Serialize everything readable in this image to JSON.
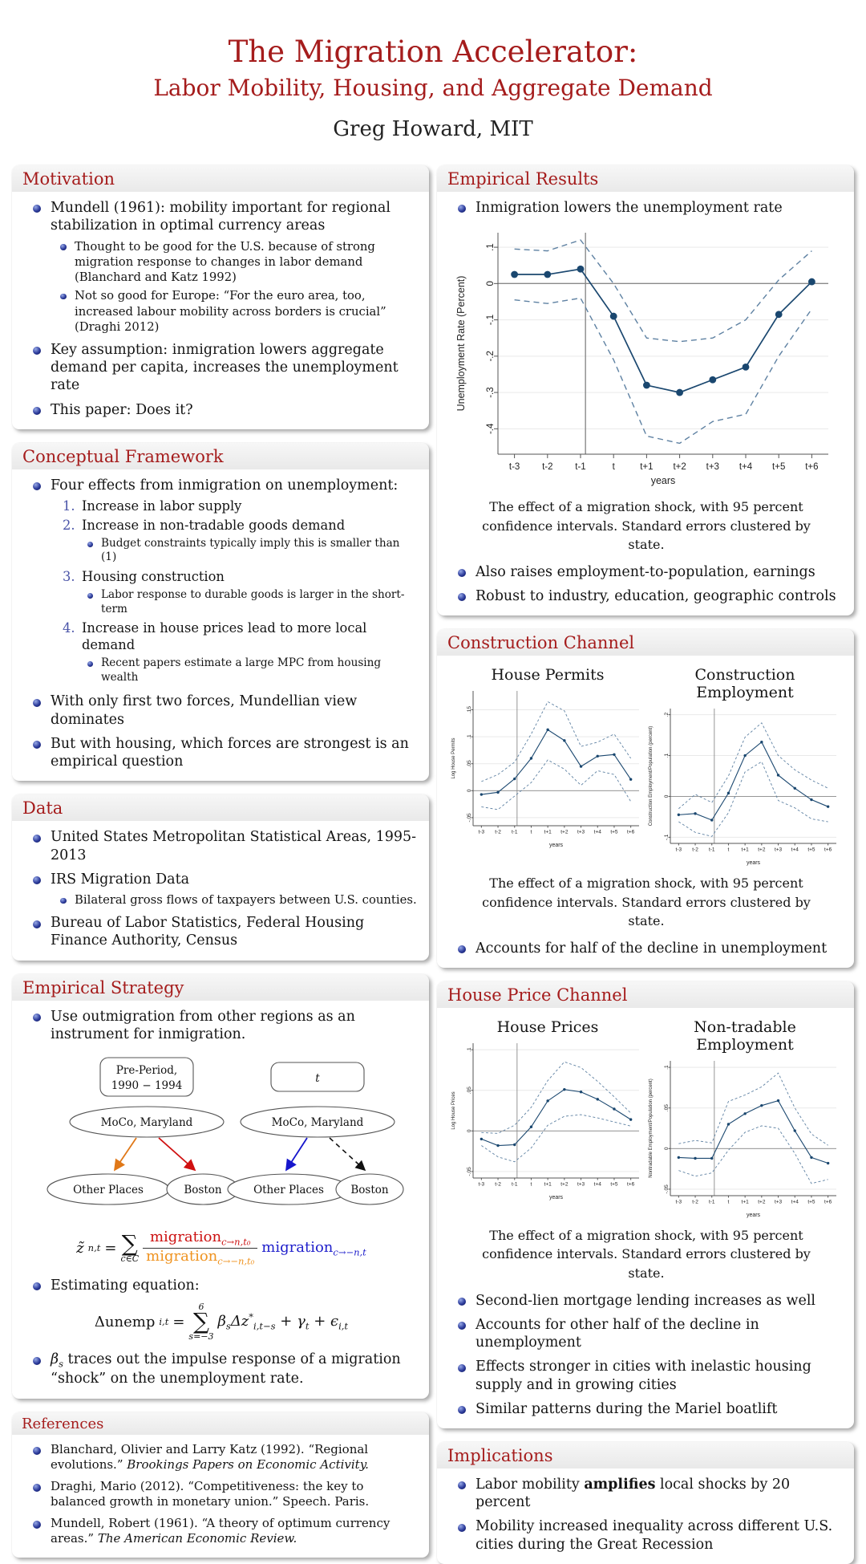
{
  "header": {
    "title_line1": "The Migration Accelerator:",
    "title_line2": "Labor Mobility, Housing, and Aggregate Demand",
    "author": "Greg Howard, MIT"
  },
  "captions": {
    "shock": "The effect of a migration shock, with 95 percent confidence intervals. Standard errors clustered by state."
  },
  "left": {
    "motivation": {
      "title": "Motivation",
      "b1": "Mundell (1961): mobility important for regional stabilization in optimal currency areas",
      "b1_sub": [
        "Thought to be good for the U.S. because of strong migration response to changes in labor demand (Blanchard and Katz 1992)",
        "Not so good for Europe: “For the euro area, too, increased labour mobility across borders is crucial” (Draghi 2012)"
      ],
      "b2": "Key assumption: inmigration lowers aggregate demand per capita, increases the unemployment rate",
      "b3": "This paper: Does it?"
    },
    "framework": {
      "title": "Conceptual Framework",
      "b1": "Four effects from inmigration on unemployment:",
      "n1": "Increase in labor supply",
      "n2": "Increase in non-tradable goods demand",
      "n2_sub": "Budget constraints typically imply this is smaller than (1)",
      "n3": "Housing construction",
      "n3_sub": "Labor response to durable goods is larger in the short-term",
      "n4": "Increase in house prices lead to more local demand",
      "n4_sub": "Recent papers estimate a large MPC from housing wealth",
      "b2": "With only first two forces, Mundellian view dominates",
      "b3": "But with housing, which forces are strongest is an empirical question"
    },
    "data": {
      "title": "Data",
      "b1": "United States Metropolitan Statistical Areas, 1995-2013",
      "b2": "IRS Migration Data",
      "b2_sub": "Bilateral gross flows of taxpayers between U.S. counties.",
      "b3": "Bureau of Labor Statistics, Federal Housing Finance Authority, Census"
    },
    "strategy": {
      "title": "Empirical Strategy",
      "b1": "Use outmigration from other regions as an instrument for inmigration.",
      "diagram": {
        "box1_line1": "Pre-Period,",
        "box1_line2": "1990 − 1994",
        "box2": "t",
        "moco": "MoCo, Maryland",
        "other": "Other Places",
        "boston": "Boston"
      },
      "eq1": {
        "lhs": "z̃",
        "lhs_sub": "n,t",
        "equals": "=",
        "sum": "∑",
        "sum_bottom": "c∈C",
        "num": "migration",
        "num_sub": "c→n,t₀",
        "den": "migration",
        "den_sub": "c→−n,t₀",
        "tail": "migration",
        "tail_sub": "c→−n,t"
      },
      "b2": "Estimating equation:",
      "eq2": {
        "lhs": "Δunemp",
        "lhs_sub": "i,t",
        "equals": "=",
        "sum": "∑",
        "sum_top": "6",
        "sum_bottom": "s=−3",
        "beta": "β",
        "beta_sub": "s",
        "dz": "Δz",
        "dz_sup": "*",
        "dz_sub": "i,t−s",
        "gamma": "+ γ",
        "gamma_sub": "t",
        "eps": "+ ϵ",
        "eps_sub": "i,t"
      },
      "b3a": "β",
      "b3a_sub": "s",
      "b3b": " traces out the impulse response of a migration “shock” on the unemployment rate."
    },
    "references": {
      "title": "References",
      "r1": "Blanchard, Olivier and Larry Katz (1992). “Regional evolutions.” ",
      "r1_it": "Brookings Papers on Economic Activity.",
      "r2": "Draghi, Mario (2012). “Competitiveness: the key to balanced growth in monetary union.” Speech. Paris.",
      "r3": "Mundell, Robert (1961). “A theory of optimum currency areas.” ",
      "r3_it": "The American Economic Review."
    }
  },
  "right": {
    "results": {
      "title": "Empirical Results",
      "b1": "Inmigration lowers the unemployment rate",
      "b2": "Also raises employment-to-population, earnings",
      "b3": "Robust to industry, education, geographic controls"
    },
    "construction": {
      "title": "Construction Channel",
      "b1": "Accounts for half of the decline in unemployment"
    },
    "houseprice": {
      "title": "House Price Channel",
      "b1": "Second-lien mortgage lending increases as well",
      "b2": "Accounts for other half of the decline in unemployment",
      "b3": "Effects stronger in cities with inelastic housing supply and in growing cities",
      "b4": "Similar patterns during the Mariel boatlift"
    },
    "implications": {
      "title": "Implications",
      "b1_pre": "Labor mobility ",
      "b1_bold": "amplifies",
      "b1_post": " local shocks by 20 percent",
      "b2": "Mobility increased inequality across different U.S. cities during the Great Recession"
    }
  },
  "chart_data": [
    {
      "type": "line",
      "title": "",
      "xlabel": "years",
      "ylabel": "Unemployment Rate (Percent)",
      "categories": [
        "t-3",
        "t-2",
        "t-1",
        "t",
        "t+1",
        "t+2",
        "t+3",
        "t+4",
        "t+5",
        "t+6"
      ],
      "yticks": [
        0.1,
        0,
        -0.1,
        -0.2,
        -0.3,
        -0.4
      ],
      "ylim": [
        -0.47,
        0.14
      ],
      "ref_x_index": 2.15,
      "grid": true,
      "legend": "none",
      "small": false,
      "series": [
        {
          "name": "estimate",
          "values": [
            0.025,
            0.025,
            0.04,
            -0.09,
            -0.28,
            -0.3,
            -0.265,
            -0.23,
            -0.085,
            0.005
          ]
        },
        {
          "name": "upper 95% CI",
          "values": [
            0.095,
            0.09,
            0.12,
            0.0,
            -0.15,
            -0.16,
            -0.15,
            -0.1,
            0.01,
            0.09
          ]
        },
        {
          "name": "lower 95% CI",
          "values": [
            -0.045,
            -0.055,
            -0.04,
            -0.21,
            -0.42,
            -0.44,
            -0.38,
            -0.36,
            -0.2,
            -0.07
          ]
        }
      ]
    },
    {
      "type": "line",
      "title": "House Permits",
      "xlabel": "years",
      "ylabel": "Log House Permits",
      "categories": [
        "t-3",
        "t-2",
        "t-1",
        "t",
        "t+1",
        "t+2",
        "t+3",
        "t+4",
        "t+5",
        "t+6"
      ],
      "yticks": [
        0.15,
        0.1,
        0.05,
        0,
        -0.05
      ],
      "ylim": [
        -0.065,
        0.185
      ],
      "ref_x_index": 2.15,
      "grid": true,
      "legend": "none",
      "small": true,
      "series": [
        {
          "name": "estimate",
          "values": [
            -0.007,
            -0.003,
            0.022,
            0.06,
            0.113,
            0.093,
            0.045,
            0.064,
            0.067,
            0.021
          ]
        },
        {
          "name": "upper 95% CI",
          "values": [
            0.017,
            0.03,
            0.053,
            0.105,
            0.165,
            0.148,
            0.082,
            0.09,
            0.105,
            0.06
          ]
        },
        {
          "name": "lower 95% CI",
          "values": [
            -0.03,
            -0.035,
            -0.01,
            0.015,
            0.057,
            0.04,
            0.01,
            0.037,
            0.03,
            -0.02
          ]
        }
      ]
    },
    {
      "type": "line",
      "title": "Construction Employment",
      "xlabel": "years",
      "ylabel": "Construction Employment/Population (percent)",
      "categories": [
        "t-3",
        "t-2",
        "t-1",
        "t",
        "t+1",
        "t+2",
        "t+3",
        "t+4",
        "t+5",
        "t+6"
      ],
      "yticks": [
        0.2,
        0.1,
        0,
        -0.1
      ],
      "ylim": [
        -0.115,
        0.215
      ],
      "ref_x_index": 2.15,
      "grid": true,
      "legend": "none",
      "small": true,
      "series": [
        {
          "name": "estimate",
          "values": [
            -0.045,
            -0.042,
            -0.058,
            0.008,
            0.1,
            0.133,
            0.052,
            0.02,
            -0.008,
            -0.025
          ]
        },
        {
          "name": "upper 95% CI",
          "values": [
            -0.03,
            0.005,
            -0.015,
            0.05,
            0.145,
            0.18,
            0.1,
            0.065,
            0.04,
            0.02
          ]
        },
        {
          "name": "lower 95% CI",
          "values": [
            -0.062,
            -0.088,
            -0.098,
            -0.04,
            0.06,
            0.085,
            -0.01,
            -0.028,
            -0.055,
            -0.062
          ]
        }
      ]
    },
    {
      "type": "line",
      "title": "House Prices",
      "xlabel": "years",
      "ylabel": "Log House Prices",
      "categories": [
        "t-3",
        "t-2",
        "t-1",
        "t",
        "t+1",
        "t+2",
        "t+3",
        "t+4",
        "t+5",
        "t+6"
      ],
      "yticks": [
        0.1,
        0.05,
        0,
        -0.05
      ],
      "ylim": [
        -0.058,
        0.108
      ],
      "ref_x_index": 2.15,
      "grid": true,
      "legend": "none",
      "small": true,
      "series": [
        {
          "name": "estimate",
          "values": [
            -0.01,
            -0.018,
            -0.017,
            0.005,
            0.037,
            0.051,
            0.048,
            0.039,
            0.027,
            0.014
          ]
        },
        {
          "name": "upper 95% CI",
          "values": [
            -0.002,
            -0.003,
            0.007,
            0.029,
            0.062,
            0.085,
            0.078,
            0.061,
            0.042,
            0.022
          ]
        },
        {
          "name": "lower 95% CI",
          "values": [
            -0.018,
            -0.032,
            -0.038,
            -0.021,
            0.007,
            0.018,
            0.02,
            0.016,
            0.011,
            0.006
          ]
        }
      ]
    },
    {
      "type": "line",
      "title": "Non-tradable Employment",
      "xlabel": "years",
      "ylabel": "Nontradable Employment/Population (percent)",
      "categories": [
        "t-3",
        "t-2",
        "t-1",
        "t",
        "t+1",
        "t+2",
        "t+3",
        "t+4",
        "t+5",
        "t+6"
      ],
      "yticks": [
        0.1,
        0.05,
        0,
        -0.05
      ],
      "ylim": [
        -0.058,
        0.108
      ],
      "ref_x_index": 2.15,
      "grid": true,
      "legend": "none",
      "small": true,
      "series": [
        {
          "name": "estimate",
          "values": [
            -0.011,
            -0.012,
            -0.012,
            0.03,
            0.043,
            0.053,
            0.059,
            0.022,
            -0.011,
            -0.018
          ]
        },
        {
          "name": "upper 95% CI",
          "values": [
            0.006,
            0.01,
            0.007,
            0.058,
            0.066,
            0.076,
            0.093,
            0.05,
            0.018,
            0.004
          ]
        },
        {
          "name": "lower 95% CI",
          "values": [
            -0.027,
            -0.034,
            -0.03,
            -0.002,
            0.02,
            0.028,
            0.025,
            -0.006,
            -0.043,
            -0.038
          ]
        }
      ]
    }
  ]
}
